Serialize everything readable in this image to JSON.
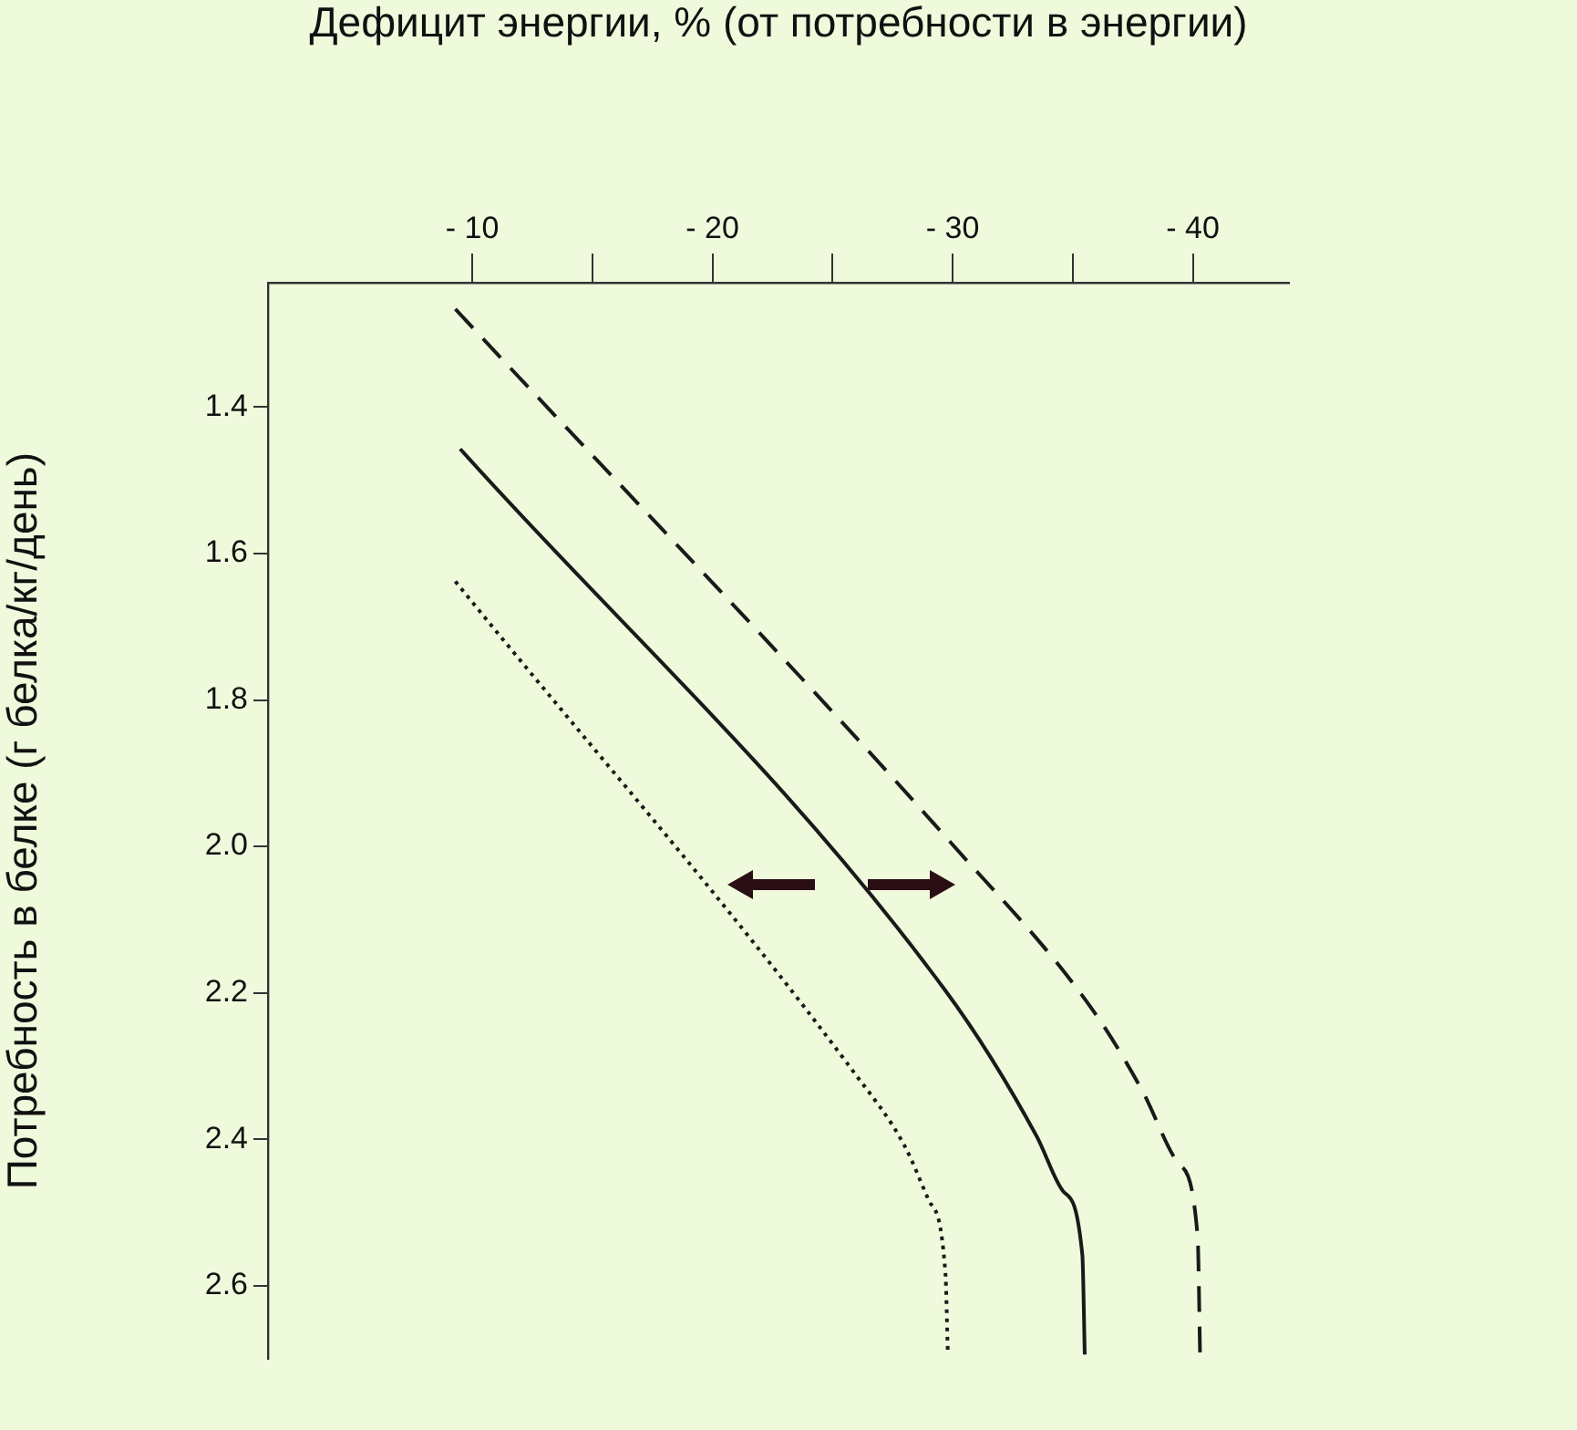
{
  "chart_data": {
    "type": "line",
    "xlabel": "Дефицит энергии, % (от потребности в энергии)",
    "ylabel": "Потребность в белке (г белка/кг/день)",
    "xlim": [
      -1.5,
      -44
    ],
    "xticks": [
      {
        "value": -10,
        "label": "- 10"
      },
      {
        "value": -15,
        "label": null
      },
      {
        "value": -20,
        "label": "- 20"
      },
      {
        "value": -25,
        "label": null
      },
      {
        "value": -30,
        "label": "- 30"
      },
      {
        "value": -35,
        "label": null
      },
      {
        "value": -40,
        "label": "- 40"
      }
    ],
    "ylim": [
      2.7,
      1.23
    ],
    "yticks": [
      1.4,
      1.6,
      1.8,
      {
        "value": 2,
        "label": "2.0"
      },
      2.2,
      2.4,
      2.6
    ],
    "grid": false,
    "legend": false,
    "marker": "none",
    "series": [
      {
        "color": "#1a1a1a",
        "line_style": "dashed",
        "x": [
          -9.3,
          -29.9,
          -35.8,
          -37.9,
          -39.4,
          -40.2,
          -40.3
        ],
        "values": [
          1.266,
          1.994,
          2.222,
          2.334,
          2.433,
          2.533,
          2.694
        ]
      },
      {
        "color": "#1a1a1a",
        "line_style": "solid",
        "x": [
          -9.5,
          -29.7,
          -33.5,
          -34.6,
          -35.4,
          -35.5
        ],
        "values": [
          1.457,
          2.197,
          2.396,
          2.471,
          2.558,
          2.694
        ]
      },
      {
        "color": "#1a1a1a",
        "line_style": "dotted",
        "x": [
          -9.3,
          -25.9,
          -28.0,
          -29.0,
          -29.7,
          -29.8
        ],
        "values": [
          1.638,
          2.309,
          2.409,
          2.483,
          2.583,
          2.694
        ]
      }
    ]
  }
}
